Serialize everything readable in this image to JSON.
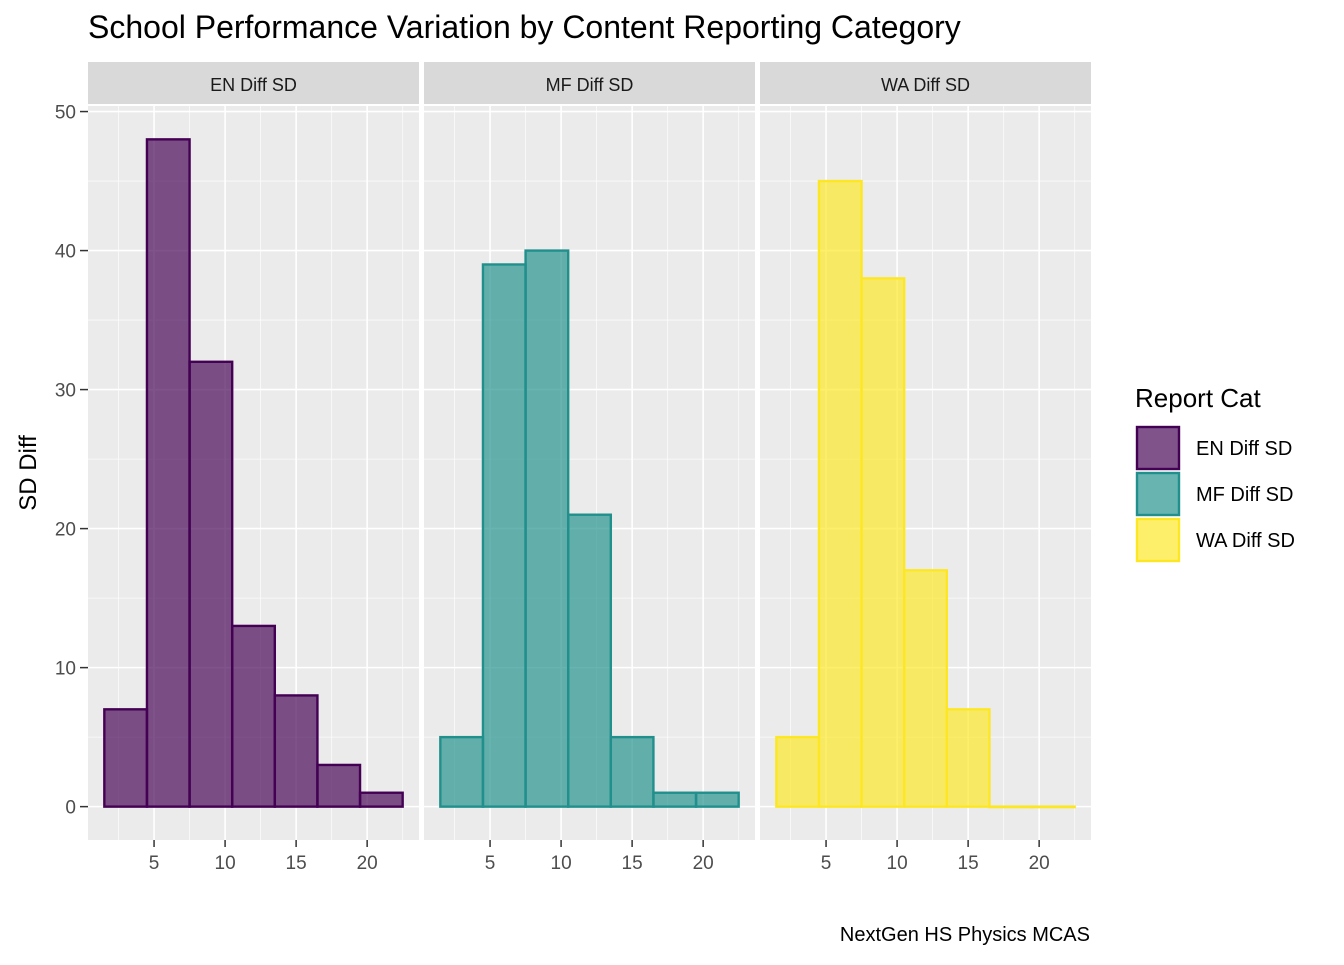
{
  "chart_data": {
    "type": "bar",
    "subtype": "faceted-histogram",
    "title": "School Performance Variation by Content Reporting Category",
    "caption": "NextGen HS Physics MCAS",
    "ylabel": "SD Diff",
    "xlabel": "",
    "ylim": [
      -2.4,
      50.4
    ],
    "xlim": [
      0.35,
      23.65
    ],
    "y_ticks": [
      0,
      10,
      20,
      30,
      40,
      50
    ],
    "x_ticks": [
      5,
      10,
      15,
      20
    ],
    "bin_width": 3,
    "bin_centers": [
      3,
      6,
      9,
      12,
      15,
      18,
      21
    ],
    "grid": true,
    "legend": {
      "title": "Report Cat",
      "position": "right",
      "entries": [
        "EN Diff SD",
        "MF Diff SD",
        "WA Diff SD"
      ]
    },
    "facets": [
      {
        "name": "EN Diff SD",
        "fill": "#440154",
        "stroke": "#440154",
        "values": [
          7,
          48,
          32,
          13,
          8,
          3,
          1
        ]
      },
      {
        "name": "MF Diff SD",
        "fill": "#21908C",
        "stroke": "#21908C",
        "values": [
          5,
          39,
          40,
          21,
          5,
          1,
          1
        ]
      },
      {
        "name": "WA Diff SD",
        "fill": "#FDE725",
        "stroke": "#FDE725",
        "values": [
          5,
          45,
          38,
          17,
          7,
          0,
          0
        ]
      }
    ]
  },
  "colors": {
    "panel_bg": "#EBEBEB",
    "strip_bg": "#D9D9D9",
    "grid_major": "#FFFFFF",
    "axis_text": "#4D4D4D"
  }
}
